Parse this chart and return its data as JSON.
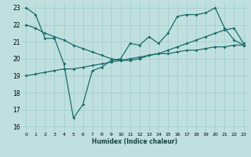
{
  "xlabel": "Humidex (Indice chaleur)",
  "bg_color": "#c0e0e0",
  "grid_color": "#a8d0d0",
  "line_color": "#1a6b6b",
  "xlim": [
    -0.5,
    23.5
  ],
  "ylim": [
    15.7,
    23.3
  ],
  "yticks": [
    16,
    17,
    18,
    19,
    20,
    21,
    22,
    23
  ],
  "xticks": [
    0,
    1,
    2,
    3,
    4,
    5,
    6,
    7,
    8,
    9,
    10,
    11,
    12,
    13,
    14,
    15,
    16,
    17,
    18,
    19,
    20,
    21,
    22,
    23
  ],
  "line1_x": [
    0,
    1,
    2,
    3,
    4,
    5,
    6,
    7,
    8,
    9,
    10,
    11,
    12,
    13,
    14,
    15,
    16,
    17,
    18,
    19,
    20,
    21,
    22,
    23
  ],
  "line1_y": [
    23.0,
    22.6,
    21.2,
    21.2,
    19.7,
    16.5,
    17.3,
    19.3,
    19.5,
    19.9,
    20.0,
    20.9,
    20.8,
    21.3,
    20.9,
    21.5,
    22.5,
    22.6,
    22.6,
    22.7,
    23.0,
    21.8,
    21.1,
    20.8
  ],
  "line2_x": [
    0,
    1,
    2,
    3,
    4,
    5,
    6,
    7,
    8,
    9,
    10,
    11,
    12,
    13,
    14,
    15,
    16,
    17,
    18,
    19,
    20,
    21,
    22,
    23
  ],
  "line2_y": [
    22.0,
    21.8,
    21.5,
    21.3,
    21.1,
    20.8,
    20.6,
    20.4,
    20.2,
    20.0,
    19.9,
    19.9,
    20.0,
    20.2,
    20.3,
    20.5,
    20.7,
    20.9,
    21.1,
    21.3,
    21.5,
    21.7,
    21.8,
    20.9
  ],
  "line3_x": [
    0,
    1,
    2,
    3,
    4,
    5,
    6,
    7,
    8,
    9,
    10,
    11,
    12,
    13,
    14,
    15,
    16,
    17,
    18,
    19,
    20,
    21,
    22,
    23
  ],
  "line3_y": [
    19.0,
    19.1,
    19.2,
    19.3,
    19.4,
    19.4,
    19.5,
    19.6,
    19.7,
    19.8,
    19.9,
    20.0,
    20.1,
    20.2,
    20.3,
    20.3,
    20.4,
    20.5,
    20.5,
    20.6,
    20.7,
    20.7,
    20.8,
    20.8
  ]
}
